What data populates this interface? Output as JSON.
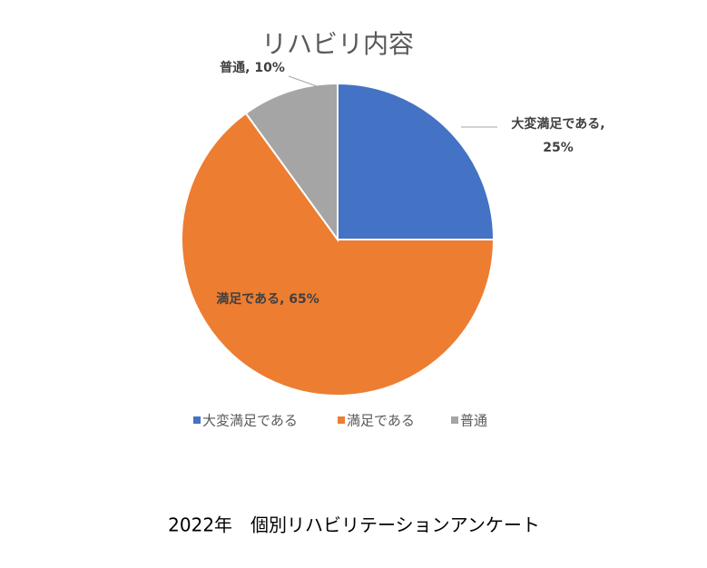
{
  "chart_data": {
    "type": "pie",
    "title": "リハビリ内容",
    "categories": [
      "大変満足である",
      "満足である",
      "普通"
    ],
    "values": [
      25,
      65,
      10
    ],
    "value_labels": [
      "大変満足である, 25%",
      "満足である, 65%",
      "普通, 10%"
    ],
    "colors": [
      "#4472c4",
      "#ed7d31",
      "#a5a5a5"
    ],
    "legend": "bottom",
    "caption": "2022年　個別リハビリテーションアンケート"
  }
}
